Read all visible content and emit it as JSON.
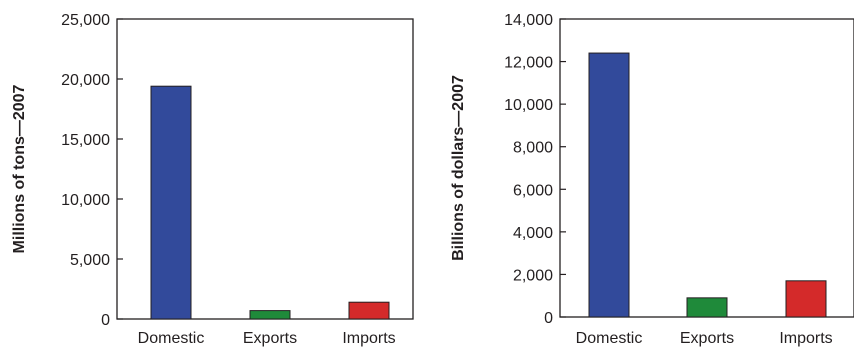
{
  "chart_data": [
    {
      "type": "bar",
      "categories": [
        "Domestic",
        "Exports",
        "Imports"
      ],
      "values": [
        19400,
        700,
        1400
      ],
      "colors": [
        "#324a9b",
        "#1f8a3a",
        "#d42a2a"
      ],
      "title": "",
      "xlabel": "",
      "ylabel": "Millions of tons—2007",
      "ylim": [
        0,
        25000
      ],
      "yticks": [
        0,
        5000,
        10000,
        15000,
        20000,
        25000
      ],
      "ytick_labels": [
        "0",
        "5,000",
        "10,000",
        "15,000",
        "20,000",
        "25,000"
      ],
      "grid": false,
      "legend": "none"
    },
    {
      "type": "bar",
      "categories": [
        "Domestic",
        "Exports",
        "Imports"
      ],
      "values": [
        12400,
        900,
        1700
      ],
      "colors": [
        "#324a9b",
        "#1f8a3a",
        "#d42a2a"
      ],
      "title": "",
      "xlabel": "",
      "ylabel": "Billions of dollars—2007",
      "ylim": [
        0,
        14000
      ],
      "yticks": [
        0,
        2000,
        4000,
        6000,
        8000,
        10000,
        12000,
        14000
      ],
      "ytick_labels": [
        "0",
        "2,000",
        "4,000",
        "6,000",
        "8,000",
        "10,000",
        "12,000",
        "14,000"
      ],
      "grid": false,
      "legend": "none"
    }
  ]
}
